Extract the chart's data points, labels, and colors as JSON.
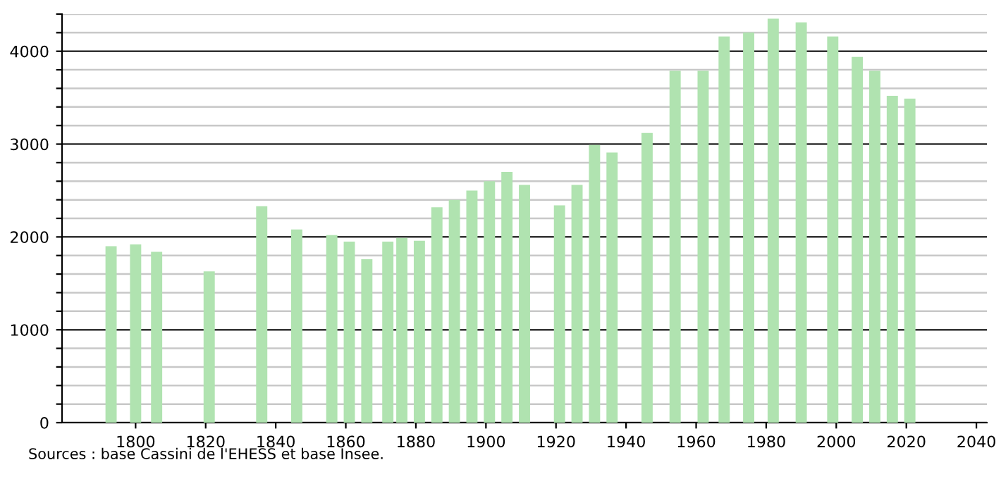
{
  "chart_data": {
    "type": "bar",
    "x": [
      1793,
      1800,
      1806,
      1821,
      1836,
      1846,
      1856,
      1861,
      1866,
      1872,
      1876,
      1881,
      1886,
      1891,
      1896,
      1901,
      1906,
      1911,
      1921,
      1926,
      1931,
      1936,
      1946,
      1954,
      1962,
      1968,
      1975,
      1982,
      1990,
      1999,
      2006,
      2011,
      2016,
      2021
    ],
    "values": [
      1900,
      1920,
      1840,
      1630,
      2330,
      2080,
      2020,
      1950,
      1760,
      1950,
      1990,
      1960,
      2320,
      2400,
      2500,
      2600,
      2700,
      2560,
      2340,
      2560,
      2990,
      2910,
      3120,
      3790,
      3790,
      4160,
      4200,
      4350,
      4310,
      4160,
      3940,
      3790,
      3520,
      3490
    ],
    "color": "#b0e3b0",
    "xlim": [
      1779,
      2043
    ],
    "xticks": [
      1800,
      1820,
      1840,
      1860,
      1880,
      1900,
      1920,
      1940,
      1960,
      1980,
      2000,
      2020,
      2040
    ],
    "ylim": [
      0,
      4400
    ],
    "yticks": [
      0,
      {
        "value": 200,
        "label": null
      },
      {
        "value": 400,
        "label": null
      },
      {
        "value": 600,
        "label": null
      },
      {
        "value": 800,
        "label": null
      },
      1000,
      {
        "value": 1200,
        "label": null
      },
      {
        "value": 1400,
        "label": null
      },
      {
        "value": 1600,
        "label": null
      },
      {
        "value": 1800,
        "label": null
      },
      2000,
      {
        "value": 2200,
        "label": null
      },
      {
        "value": 2400,
        "label": null
      },
      {
        "value": 2600,
        "label": null
      },
      {
        "value": 2800,
        "label": null
      },
      3000,
      {
        "value": 3200,
        "label": null
      },
      {
        "value": 3400,
        "label": null
      },
      {
        "value": 3600,
        "label": null
      },
      {
        "value": 3800,
        "label": null
      },
      4000,
      {
        "value": 4200,
        "label": null
      },
      {
        "value": 4400,
        "label": null
      }
    ],
    "grid": "y",
    "annotations": [
      "Sources : base Cassini de l'EHESS et base Insee."
    ]
  }
}
